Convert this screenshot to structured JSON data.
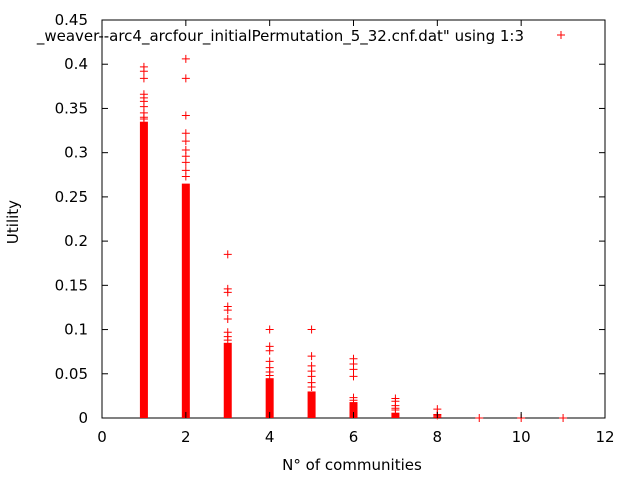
{
  "chart_data": {
    "type": "scatter",
    "title": "",
    "xlabel": "N° of communities",
    "ylabel": "Utility",
    "xlim": [
      0,
      12
    ],
    "ylim": [
      0,
      0.45
    ],
    "xticks": [
      "0",
      "2",
      "4",
      "6",
      "8",
      "10",
      "12"
    ],
    "yticks": [
      "0",
      "0.05",
      "0.1",
      "0.15",
      "0.2",
      "0.25",
      "0.3",
      "0.35",
      "0.4",
      "0.45"
    ],
    "grid": false,
    "legend_position": "top-right",
    "marker": "+",
    "color": "#ff0000",
    "series": [
      {
        "name": "_weaver--arc4_arcfour_initialPermutation_5_32.cnf.dat\" using 1:3",
        "columns": [
          {
            "x": 1,
            "dense_range": [
              0,
              0.335
            ],
            "points": [
              0.397,
              0.392,
              0.384,
              0.366,
              0.362,
              0.358,
              0.352,
              0.345,
              0.34,
              0.338
            ]
          },
          {
            "x": 2,
            "dense_range": [
              0,
              0.265
            ],
            "points": [
              0.406,
              0.384,
              0.342,
              0.322,
              0.313,
              0.303,
              0.296,
              0.289,
              0.28,
              0.273
            ]
          },
          {
            "x": 3,
            "dense_range": [
              0,
              0.085
            ],
            "points": [
              0.185,
              0.146,
              0.142,
              0.126,
              0.122,
              0.112,
              0.097,
              0.092,
              0.088
            ]
          },
          {
            "x": 4,
            "dense_range": [
              0,
              0.045
            ],
            "points": [
              0.1,
              0.081,
              0.076,
              0.064,
              0.057,
              0.052,
              0.048
            ]
          },
          {
            "x": 5,
            "dense_range": [
              0,
              0.03
            ],
            "points": [
              0.1,
              0.07,
              0.059,
              0.053,
              0.047,
              0.04,
              0.035
            ]
          },
          {
            "x": 6,
            "dense_range": [
              0,
              0.018
            ],
            "points": [
              0.067,
              0.061,
              0.055,
              0.047,
              0.023,
              0.02
            ]
          },
          {
            "x": 7,
            "dense_range": [
              0,
              0.006
            ],
            "points": [
              0.022,
              0.019,
              0.014,
              0.011,
              0.009
            ]
          },
          {
            "x": 8,
            "dense_range": [
              0,
              0.002
            ],
            "points": [
              0.01,
              0.004,
              0.003
            ]
          },
          {
            "x": 9,
            "dense_range": [
              0,
              0
            ],
            "points": [
              0.0
            ]
          },
          {
            "x": 10,
            "dense_range": [
              0,
              0
            ],
            "points": [
              0.0
            ]
          },
          {
            "x": 11,
            "dense_range": [
              0,
              0
            ],
            "points": [
              0.0
            ]
          }
        ]
      }
    ]
  }
}
